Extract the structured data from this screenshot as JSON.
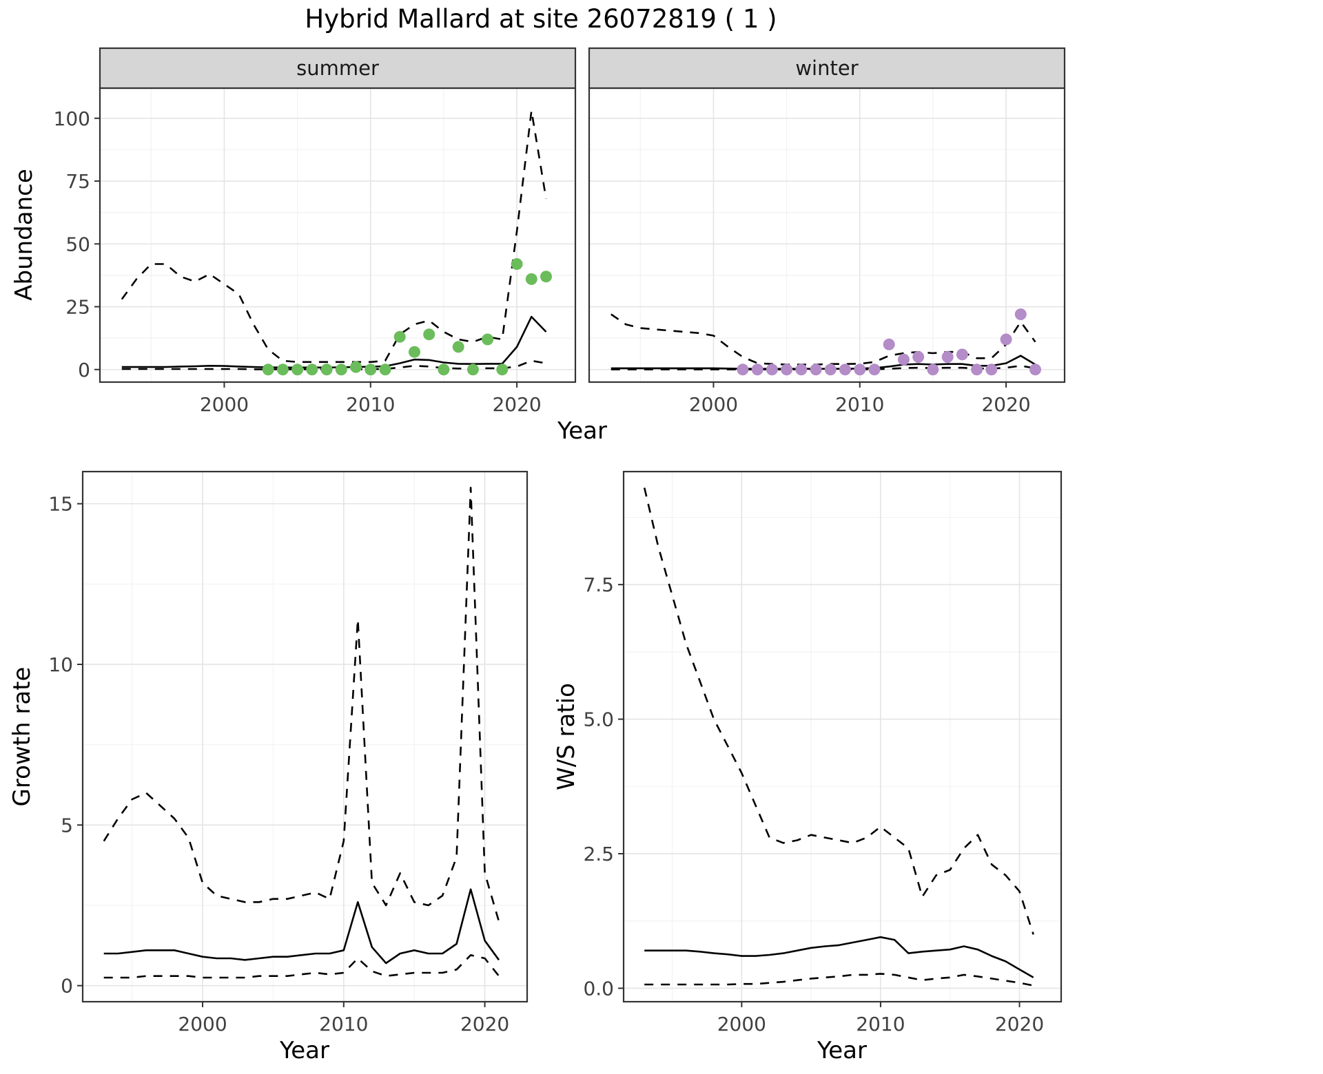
{
  "title": "Hybrid Mallard at site 26072819 ( 1 )",
  "colors": {
    "summer_points": "#6bbc5b",
    "winter_points": "#b48cc8",
    "line": "#000000",
    "grid_major": "#e4e4e4",
    "grid_minor": "#f2f2f2",
    "strip_bg": "#d6d6d6",
    "panel_border": "#333333",
    "tick_label": "#404040"
  },
  "axis_titles": {
    "abundance": "Abundance",
    "year": "Year",
    "growth_rate": "Growth rate",
    "ws_ratio": "W/S ratio"
  },
  "chart_data": [
    {
      "id": "abundance_summer",
      "type": "line",
      "facet_label": "summer",
      "xlabel": "Year",
      "ylabel": "Abundance",
      "xlim": [
        1991.5,
        2024
      ],
      "ylim": [
        -5,
        112
      ],
      "xticks": {
        "values": [
          2000,
          2010,
          2020
        ],
        "labels": [
          "2000",
          "2010",
          "2020"
        ]
      },
      "yticks": {
        "values": [
          0,
          25,
          50,
          75,
          100
        ],
        "labels": [
          "0",
          "25",
          "50",
          "75",
          "100"
        ]
      },
      "years": [
        1993,
        1994,
        1995,
        1996,
        1997,
        1998,
        1999,
        2000,
        2001,
        2002,
        2003,
        2004,
        2005,
        2006,
        2007,
        2008,
        2009,
        2010,
        2011,
        2012,
        2013,
        2014,
        2015,
        2016,
        2017,
        2018,
        2019,
        2020,
        2021,
        2022
      ],
      "series": [
        {
          "name": "upper-95ci",
          "style": "dashed",
          "y": [
            28,
            36,
            42,
            42,
            37,
            35,
            38,
            34,
            30,
            18,
            8,
            3.5,
            3,
            3,
            3,
            3,
            3,
            3,
            3.5,
            14,
            18,
            19.5,
            15,
            12,
            11,
            13,
            12,
            55,
            103,
            68
          ]
        },
        {
          "name": "estimate",
          "style": "solid",
          "y": [
            1,
            1,
            1,
            1,
            1.2,
            1.3,
            1.5,
            1.4,
            1.2,
            1,
            0.9,
            0.8,
            0.8,
            0.8,
            0.8,
            0.9,
            1,
            1.1,
            1.3,
            2.5,
            4,
            3.8,
            2.8,
            2.3,
            2.2,
            2.3,
            2.3,
            9,
            21,
            15
          ]
        },
        {
          "name": "lower-95ci",
          "style": "dashed",
          "y": [
            0.2,
            0.2,
            0.2,
            0.2,
            0.2,
            0.2,
            0.2,
            0.2,
            0.2,
            0.1,
            0.1,
            0.1,
            0.1,
            0.1,
            0.1,
            0.1,
            0.1,
            0.15,
            0.2,
            0.8,
            1.5,
            1.2,
            0.6,
            0.4,
            0.4,
            0.5,
            0.5,
            1.2,
            3.5,
            2.5
          ]
        },
        {
          "name": "observed-counts",
          "style": "points",
          "color_key": "summer_points",
          "x": [
            2003,
            2004,
            2005,
            2006,
            2007,
            2008,
            2009,
            2010,
            2011,
            2012,
            2013,
            2014,
            2015,
            2016,
            2017,
            2018,
            2019,
            2020,
            2021,
            2022
          ],
          "y": [
            0,
            0,
            0,
            0,
            0,
            0,
            1,
            0,
            0,
            13,
            7,
            14,
            0,
            9,
            0,
            12,
            0,
            42,
            36,
            37
          ]
        }
      ]
    },
    {
      "id": "abundance_winter",
      "type": "line",
      "facet_label": "winter",
      "xlabel": "Year",
      "ylabel": "Abundance",
      "xlim": [
        1991.5,
        2024
      ],
      "ylim": [
        -5,
        112
      ],
      "xticks": {
        "values": [
          2000,
          2010,
          2020
        ],
        "labels": [
          "2000",
          "2010",
          "2020"
        ]
      },
      "yticks": {
        "values": [
          0,
          25,
          50,
          75,
          100
        ],
        "labels": [
          "0",
          "25",
          "50",
          "75",
          "100"
        ]
      },
      "years": [
        1993,
        1994,
        1995,
        1996,
        1997,
        1998,
        1999,
        2000,
        2001,
        2002,
        2003,
        2004,
        2005,
        2006,
        2007,
        2008,
        2009,
        2010,
        2011,
        2012,
        2013,
        2014,
        2015,
        2016,
        2017,
        2018,
        2019,
        2020,
        2021,
        2022
      ],
      "series": [
        {
          "name": "upper-95ci",
          "style": "dashed",
          "y": [
            22,
            18,
            16.5,
            16,
            15.5,
            15,
            14.5,
            13.5,
            9,
            5,
            2.5,
            2.2,
            2,
            2,
            2,
            2.2,
            2.2,
            2.3,
            3,
            5.5,
            6.5,
            7,
            6.5,
            7,
            7,
            4.5,
            4.5,
            10,
            19,
            11
          ]
        },
        {
          "name": "estimate",
          "style": "solid",
          "y": [
            0.5,
            0.5,
            0.5,
            0.5,
            0.5,
            0.5,
            0.5,
            0.5,
            0.4,
            0.3,
            0.3,
            0.3,
            0.3,
            0.3,
            0.3,
            0.3,
            0.3,
            0.4,
            0.6,
            1.2,
            2,
            2.2,
            2,
            2.2,
            2.2,
            1.5,
            1.5,
            2.5,
            5.5,
            2
          ]
        },
        {
          "name": "lower-95ci",
          "style": "dashed",
          "y": [
            0.05,
            0.05,
            0.05,
            0.05,
            0.05,
            0.05,
            0.05,
            0.05,
            0.05,
            0.03,
            0.03,
            0.03,
            0.03,
            0.03,
            0.03,
            0.03,
            0.03,
            0.05,
            0.1,
            0.3,
            0.6,
            0.7,
            0.6,
            0.7,
            0.7,
            0.4,
            0.4,
            0.7,
            1.5,
            0.5
          ]
        },
        {
          "name": "observed-counts",
          "style": "points",
          "color_key": "winter_points",
          "x": [
            2002,
            2003,
            2004,
            2005,
            2006,
            2007,
            2008,
            2009,
            2010,
            2011,
            2012,
            2013,
            2014,
            2015,
            2016,
            2017,
            2018,
            2019,
            2020,
            2021,
            2022
          ],
          "y": [
            0,
            0,
            0,
            0,
            0,
            0,
            0,
            0,
            0,
            0,
            10,
            4,
            5,
            0,
            5,
            6,
            0,
            0,
            12,
            22,
            0
          ]
        }
      ]
    },
    {
      "id": "growth_rate",
      "type": "line",
      "facet_label": "",
      "xlabel": "Year",
      "ylabel": "Growth rate",
      "xlim": [
        1991.5,
        2023
      ],
      "ylim": [
        -0.5,
        16
      ],
      "xticks": {
        "values": [
          2000,
          2010,
          2020
        ],
        "labels": [
          "2000",
          "2010",
          "2020"
        ]
      },
      "yticks": {
        "values": [
          0,
          5,
          10,
          15
        ],
        "labels": [
          "0",
          "5",
          "10",
          "15"
        ]
      },
      "years": [
        1993,
        1994,
        1995,
        1996,
        1997,
        1998,
        1999,
        2000,
        2001,
        2002,
        2003,
        2004,
        2005,
        2006,
        2007,
        2008,
        2009,
        2010,
        2011,
        2012,
        2013,
        2014,
        2015,
        2016,
        2017,
        2018,
        2019,
        2020,
        2021
      ],
      "series": [
        {
          "name": "upper-95ci",
          "style": "dashed",
          "y": [
            4.5,
            5.2,
            5.8,
            6.0,
            5.6,
            5.2,
            4.6,
            3.2,
            2.8,
            2.7,
            2.6,
            2.6,
            2.7,
            2.7,
            2.8,
            2.9,
            2.7,
            4.5,
            11.4,
            3.2,
            2.5,
            3.5,
            2.6,
            2.5,
            2.8,
            4.0,
            15.5,
            3.5,
            2.0
          ]
        },
        {
          "name": "estimate",
          "style": "solid",
          "y": [
            1.0,
            1.0,
            1.05,
            1.1,
            1.1,
            1.1,
            1.0,
            0.9,
            0.85,
            0.85,
            0.8,
            0.85,
            0.9,
            0.9,
            0.95,
            1.0,
            1.0,
            1.1,
            2.6,
            1.2,
            0.7,
            1.0,
            1.1,
            1.0,
            1.0,
            1.3,
            3.0,
            1.4,
            0.8
          ]
        },
        {
          "name": "lower-95ci",
          "style": "dashed",
          "y": [
            0.25,
            0.25,
            0.25,
            0.3,
            0.3,
            0.3,
            0.3,
            0.25,
            0.25,
            0.25,
            0.25,
            0.3,
            0.3,
            0.3,
            0.35,
            0.4,
            0.35,
            0.4,
            0.85,
            0.45,
            0.3,
            0.35,
            0.4,
            0.4,
            0.4,
            0.5,
            0.95,
            0.85,
            0.3
          ]
        }
      ]
    },
    {
      "id": "ws_ratio",
      "type": "line",
      "facet_label": "",
      "xlabel": "Year",
      "ylabel": "W/S ratio",
      "xlim": [
        1991.5,
        2023
      ],
      "ylim": [
        -0.25,
        9.6
      ],
      "xticks": {
        "values": [
          2000,
          2010,
          2020
        ],
        "labels": [
          "2000",
          "2010",
          "2020"
        ]
      },
      "yticks": {
        "values": [
          0,
          2.5,
          5,
          7.5
        ],
        "labels": [
          "0.0",
          "2.5",
          "5.0",
          "7.5"
        ]
      },
      "years": [
        1993,
        1994,
        1995,
        1996,
        1997,
        1998,
        1999,
        2000,
        2001,
        2002,
        2003,
        2004,
        2005,
        2006,
        2007,
        2008,
        2009,
        2010,
        2011,
        2012,
        2013,
        2014,
        2015,
        2016,
        2017,
        2018,
        2019,
        2020,
        2021
      ],
      "series": [
        {
          "name": "upper-95ci",
          "style": "dashed",
          "y": [
            9.3,
            8.2,
            7.3,
            6.4,
            5.7,
            5.0,
            4.5,
            4.0,
            3.4,
            2.8,
            2.7,
            2.75,
            2.85,
            2.8,
            2.75,
            2.7,
            2.8,
            3.0,
            2.8,
            2.6,
            1.7,
            2.1,
            2.2,
            2.6,
            2.85,
            2.3,
            2.1,
            1.8,
            1.0
          ]
        },
        {
          "name": "estimate",
          "style": "solid",
          "y": [
            0.7,
            0.7,
            0.7,
            0.7,
            0.68,
            0.65,
            0.63,
            0.6,
            0.6,
            0.62,
            0.65,
            0.7,
            0.75,
            0.78,
            0.8,
            0.85,
            0.9,
            0.95,
            0.9,
            0.65,
            0.68,
            0.7,
            0.72,
            0.78,
            0.72,
            0.6,
            0.5,
            0.35,
            0.2
          ]
        },
        {
          "name": "lower-95ci",
          "style": "dashed",
          "y": [
            0.07,
            0.07,
            0.07,
            0.07,
            0.07,
            0.07,
            0.07,
            0.08,
            0.08,
            0.1,
            0.12,
            0.15,
            0.18,
            0.2,
            0.22,
            0.25,
            0.25,
            0.27,
            0.25,
            0.2,
            0.15,
            0.18,
            0.2,
            0.25,
            0.22,
            0.18,
            0.14,
            0.1,
            0.05
          ]
        }
      ]
    }
  ]
}
